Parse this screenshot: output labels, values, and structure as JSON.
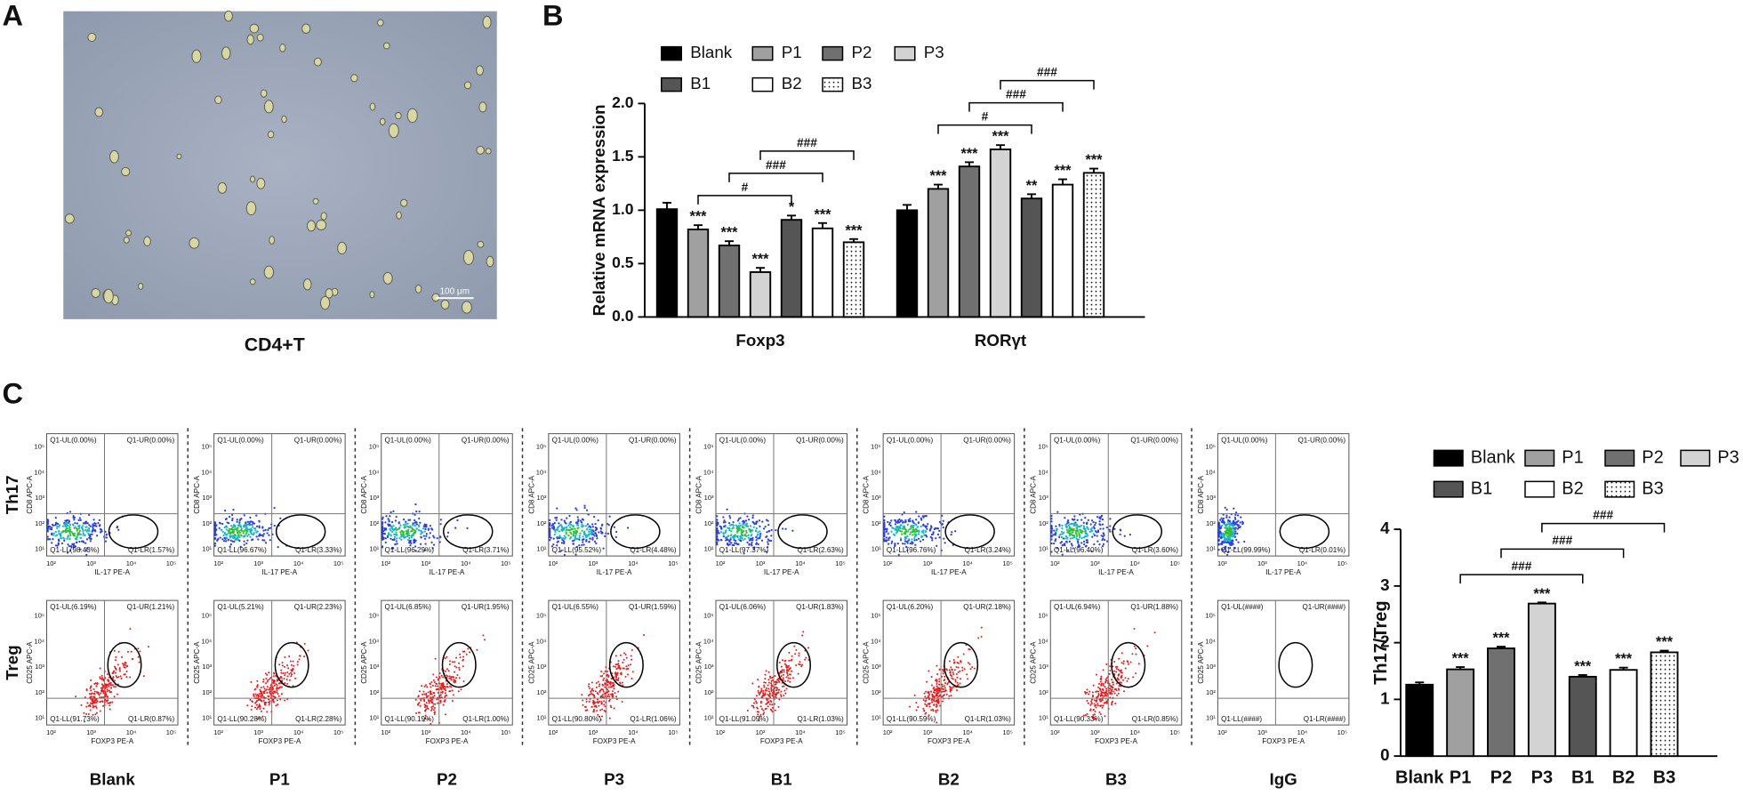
{
  "panel_a": {
    "label": "A",
    "caption": "CD4+T",
    "scale_bar": "100 μm"
  },
  "chart_data": [
    {
      "type": "bar",
      "panel": "B",
      "y_label": "Relative mRNA expression",
      "categories": [
        "Foxp3",
        "RORγt"
      ],
      "ylim": [
        0,
        2
      ],
      "yticks": [
        {
          "value": 0,
          "label": "0.0"
        },
        {
          "value": 0.5,
          "label": "0.5"
        },
        {
          "value": 1,
          "label": "1.0"
        },
        {
          "value": 1.5,
          "label": "1.5"
        },
        {
          "value": 2,
          "label": "2.0"
        }
      ],
      "series": [
        {
          "name": "Blank",
          "color": "#000000",
          "values": [
            1.01,
            1.0
          ],
          "errors": [
            0.06,
            0.05
          ],
          "significance": [
            null,
            null
          ]
        },
        {
          "name": "P1",
          "color": "#a0a0a0",
          "values": [
            0.82,
            1.2
          ],
          "errors": [
            0.04,
            0.04
          ],
          "significance": [
            "***",
            "***"
          ]
        },
        {
          "name": "P2",
          "color": "#707070",
          "values": [
            0.67,
            1.41
          ],
          "errors": [
            0.04,
            0.04
          ],
          "significance": [
            "***",
            "***"
          ]
        },
        {
          "name": "P3",
          "color": "#d3d3d3",
          "values": [
            0.42,
            1.57
          ],
          "errors": [
            0.04,
            0.04
          ],
          "significance": [
            "***",
            "***"
          ]
        },
        {
          "name": "B1",
          "color": "#555555",
          "values": [
            0.91,
            1.11
          ],
          "errors": [
            0.04,
            0.04
          ],
          "significance": [
            "*",
            "**"
          ]
        },
        {
          "name": "B2",
          "color": "#ffffff",
          "values": [
            0.83,
            1.24
          ],
          "errors": [
            0.05,
            0.05
          ],
          "significance": [
            "***",
            "***"
          ]
        },
        {
          "name": "B3",
          "color": "#ffffff",
          "hatch": "dots",
          "values": [
            0.7,
            1.35
          ],
          "errors": [
            0.03,
            0.04
          ],
          "significance": [
            "***",
            "***"
          ]
        }
      ],
      "brackets": [
        {
          "category": "Foxp3",
          "between": [
            "P1",
            "B1"
          ],
          "label": "#"
        },
        {
          "category": "Foxp3",
          "between": [
            "P2",
            "B2"
          ],
          "label": "###"
        },
        {
          "category": "Foxp3",
          "between": [
            "P3",
            "B3"
          ],
          "label": "###"
        },
        {
          "category": "RORγt",
          "between": [
            "P1",
            "B1"
          ],
          "label": "#"
        },
        {
          "category": "RORγt",
          "between": [
            "P2",
            "B2"
          ],
          "label": "###"
        },
        {
          "category": "RORγt",
          "between": [
            "P3",
            "B3"
          ],
          "label": "###"
        }
      ]
    },
    {
      "type": "bar",
      "y_label": "Th17/Treg",
      "categories": [
        "Blank",
        "P1",
        "P2",
        "P3",
        "B1",
        "B2",
        "B3"
      ],
      "values": [
        1.26,
        1.53,
        1.9,
        2.69,
        1.4,
        1.52,
        1.83
      ],
      "errors": [
        0.04,
        0.04,
        0.03,
        0.02,
        0.03,
        0.04,
        0.03
      ],
      "colors": [
        "#000000",
        "#a0a0a0",
        "#707070",
        "#d3d3d3",
        "#555555",
        "#ffffff",
        "#ffffff"
      ],
      "hatch": [
        null,
        null,
        null,
        null,
        null,
        null,
        "dots"
      ],
      "significance": [
        null,
        "***",
        "***",
        "***",
        "***",
        "***",
        "***"
      ],
      "ylim": [
        0,
        4
      ],
      "yticks": [
        0,
        1,
        2,
        3,
        4
      ],
      "brackets": [
        {
          "between": [
            "P1",
            "B1"
          ],
          "label": "###"
        },
        {
          "between": [
            "P2",
            "B2"
          ],
          "label": "###"
        },
        {
          "between": [
            "P3",
            "B3"
          ],
          "label": "###"
        }
      ]
    }
  ],
  "flow": {
    "label": "C",
    "columns": [
      "Blank",
      "P1",
      "P2",
      "P3",
      "B1",
      "B2",
      "B3",
      "IgG"
    ],
    "x_ticks": [
      "10²",
      "10³",
      "10⁴",
      "10⁵"
    ],
    "y_ticks": [
      "10¹",
      "10²",
      "10³",
      "10⁴",
      "10⁵"
    ],
    "rows": [
      {
        "name": "Th17",
        "x_label": "IL-17 PE-A",
        "y_label": "CD8 APC-A",
        "plots": [
          {
            "UL": "Q1-UL(0.00%)",
            "UR": "Q1-UR(0.00%)",
            "LL": "Q1-LL(98.43%)",
            "LR": "Q1-LR(1.57%)"
          },
          {
            "UL": "Q1-UL(0.00%)",
            "UR": "Q1-UR(0.00%)",
            "LL": "Q1-LL(96.67%)",
            "LR": "Q1-LR(3.33%)"
          },
          {
            "UL": "Q1-UL(0.00%)",
            "UR": "Q1-UR(0.00%)",
            "LL": "Q1-LL(96.29%)",
            "LR": "Q1-LR(3.71%)"
          },
          {
            "UL": "Q1-UL(0.00%)",
            "UR": "Q1-UR(0.00%)",
            "LL": "Q1-LL(95.52%)",
            "LR": "Q1-LR(4.48%)"
          },
          {
            "UL": "Q1-UL(0.00%)",
            "UR": "Q1-UR(0.00%)",
            "LL": "Q1-LL(97.37%)",
            "LR": "Q1-LR(2.63%)"
          },
          {
            "UL": "Q1-UL(0.00%)",
            "UR": "Q1-UR(0.00%)",
            "LL": "Q1-LL(96.76%)",
            "LR": "Q1-LR(3.24%)"
          },
          {
            "UL": "Q1-UL(0.00%)",
            "UR": "Q1-UR(0.00%)",
            "LL": "Q1-LL(96.40%)",
            "LR": "Q1-LR(3.60%)"
          },
          {
            "UL": "Q1-UL(0.00%)",
            "UR": "Q1-UR(0.00%)",
            "LL": "Q1-LL(99.99%)",
            "LR": "Q1-LR(0.01%)"
          }
        ]
      },
      {
        "name": "Treg",
        "x_label": "FOXP3 PE-A",
        "y_label": "CD25 APC-A",
        "plots": [
          {
            "UL": "Q1-UL(6.19%)",
            "UR": "Q1-UR(1.21%)",
            "LL": "Q1-LL(91.73%)",
            "LR": "Q1-LR(0.87%)"
          },
          {
            "UL": "Q1-UL(5.21%)",
            "UR": "Q1-UR(2.23%)",
            "LL": "Q1-LL(90.28%)",
            "LR": "Q1-LR(2.28%)"
          },
          {
            "UL": "Q1-UL(6.85%)",
            "UR": "Q1-UR(1.95%)",
            "LL": "Q1-LL(90.19%)",
            "LR": "Q1-LR(1.00%)"
          },
          {
            "UL": "Q1-UL(6.55%)",
            "UR": "Q1-UR(1.59%)",
            "LL": "Q1-LL(90.80%)",
            "LR": "Q1-LR(1.06%)"
          },
          {
            "UL": "Q1-UL(6.06%)",
            "UR": "Q1-UR(1.83%)",
            "LL": "Q1-LL(91.09%)",
            "LR": "Q1-LR(1.03%)"
          },
          {
            "UL": "Q1-UL(6.20%)",
            "UR": "Q1-UR(2.18%)",
            "LL": "Q1-LL(90.59%)",
            "LR": "Q1-LR(1.03%)"
          },
          {
            "UL": "Q1-UL(6.94%)",
            "UR": "Q1-UR(1.88%)",
            "LL": "Q1-LL(90.33%)",
            "LR": "Q1-LR(0.85%)"
          },
          {
            "UL": "Q1-UL(####)",
            "UR": "Q1-UR(####)",
            "LL": "Q1-LL(####)",
            "LR": "Q1-LR(####)"
          }
        ]
      }
    ]
  }
}
